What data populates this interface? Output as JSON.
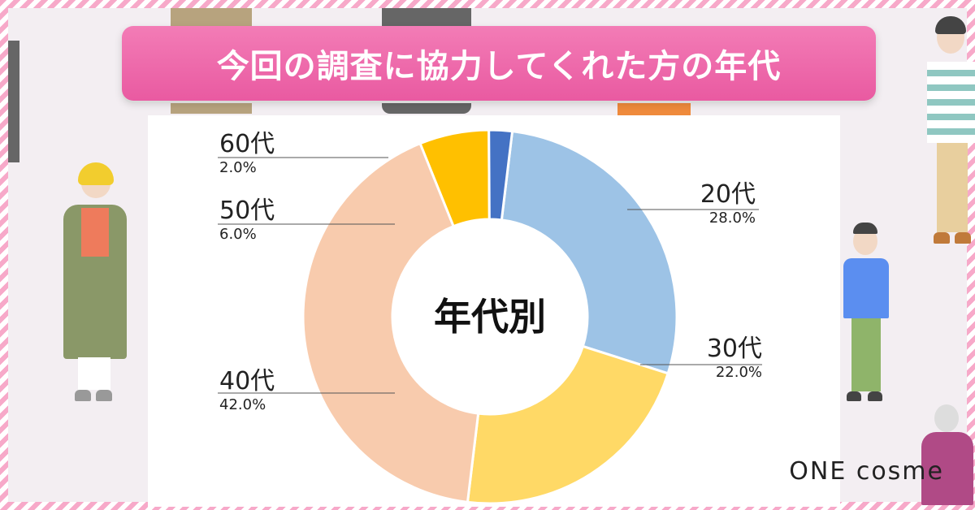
{
  "title": "今回の調査に協力してくれた方の年代",
  "brand": "ONE cosme",
  "chart_data": {
    "type": "donut",
    "center_label": "年代別",
    "segments": [
      {
        "label": "20代",
        "value": 28.0,
        "pct_label": "28.0%",
        "color": "#9dc3e6"
      },
      {
        "label": "30代",
        "value": 22.0,
        "pct_label": "22.0%",
        "color": "#ffd966"
      },
      {
        "label": "40代",
        "value": 42.0,
        "pct_label": "42.0%",
        "color": "#f8cbad"
      },
      {
        "label": "50代",
        "value": 6.0,
        "pct_label": "6.0%",
        "color": "#ffc000"
      },
      {
        "label": "60代",
        "value": 2.0,
        "pct_label": "2.0%",
        "color": "#4472c4"
      }
    ]
  }
}
